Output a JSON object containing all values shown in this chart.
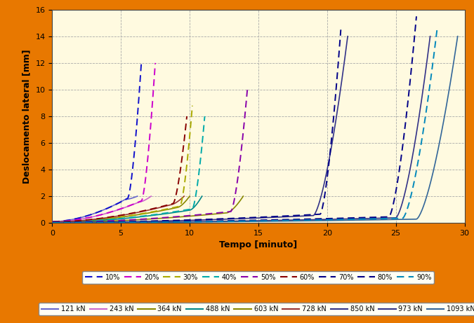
{
  "xlabel": "Tempo [minuto]",
  "ylabel": "Deslocamento lateral [mm]",
  "xlim": [
    0,
    30
  ],
  "ylim": [
    0,
    16
  ],
  "xticks": [
    0,
    5,
    10,
    15,
    20,
    25,
    30
  ],
  "yticks": [
    0,
    2,
    4,
    6,
    8,
    10,
    12,
    14,
    16
  ],
  "background_color": "#FFFAE0",
  "outer_border_color": "#E87800",
  "pct_labels": [
    "10%",
    "20%",
    "30%",
    "40%",
    "50%",
    "60%",
    "70%",
    "80%",
    "90%"
  ],
  "kn_labels": [
    "121 kN",
    "243 kN",
    "364 kN",
    "488 kN",
    "603 kN",
    "728 kN",
    "850 kN",
    "973 kN",
    "1093 kN"
  ],
  "pct_colors": [
    "#1010CC",
    "#CC00CC",
    "#AAAA00",
    "#00AAAA",
    "#8800AA",
    "#880000",
    "#000088",
    "#000088",
    "#0088BB"
  ],
  "kn_colors": [
    "#6666CC",
    "#CC66CC",
    "#888800",
    "#008888",
    "#888800",
    "#993333",
    "#333388",
    "#333388",
    "#336699"
  ],
  "curves": [
    {
      "tc": 5.5,
      "te": 6.5,
      "ymax_pct": 12.2,
      "y0_pct": 1.85,
      "tc_kn": 5.3,
      "te_kn": 6.2,
      "ymax_kn": 2.0,
      "y0_kn": 1.75
    },
    {
      "tc": 6.5,
      "te": 7.5,
      "ymax_pct": 12.0,
      "y0_pct": 1.65,
      "tc_kn": 6.3,
      "te_kn": 7.2,
      "ymax_kn": 2.0,
      "y0_kn": 1.55
    },
    {
      "tc": 9.3,
      "te": 10.2,
      "ymax_pct": 8.8,
      "y0_pct": 1.25,
      "tc_kn": 9.1,
      "te_kn": 10.0,
      "ymax_kn": 2.0,
      "y0_kn": 1.15
    },
    {
      "tc": 10.2,
      "te": 11.1,
      "ymax_pct": 8.0,
      "y0_pct": 1.05,
      "tc_kn": 10.0,
      "te_kn": 10.9,
      "ymax_kn": 2.0,
      "y0_kn": 0.95
    },
    {
      "tc": 13.0,
      "te": 14.2,
      "ymax_pct": 10.0,
      "y0_pct": 0.85,
      "tc_kn": 12.7,
      "te_kn": 13.9,
      "ymax_kn": 2.0,
      "y0_kn": 0.75
    },
    {
      "tc": 8.8,
      "te": 9.8,
      "ymax_pct": 8.0,
      "y0_pct": 1.45,
      "tc_kn": 8.6,
      "te_kn": 9.6,
      "ymax_kn": 2.0,
      "y0_kn": 1.35
    },
    {
      "tc": 19.5,
      "te": 21.0,
      "ymax_pct": 14.5,
      "y0_pct": 0.65,
      "tc_kn": 19.0,
      "te_kn": 21.5,
      "ymax_kn": 14.0,
      "y0_kn": 0.55
    },
    {
      "tc": 24.5,
      "te": 26.5,
      "ymax_pct": 15.5,
      "y0_pct": 0.45,
      "tc_kn": 25.0,
      "te_kn": 27.5,
      "ymax_kn": 14.0,
      "y0_kn": 0.38
    },
    {
      "tc": 25.5,
      "te": 28.0,
      "ymax_pct": 14.5,
      "y0_pct": 0.35,
      "tc_kn": 26.5,
      "te_kn": 29.5,
      "ymax_kn": 14.0,
      "y0_kn": 0.28
    }
  ]
}
